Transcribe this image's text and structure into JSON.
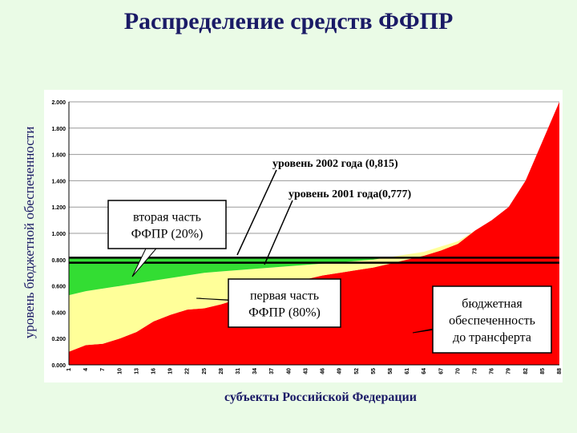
{
  "chart_data": {
    "type": "stacked_area",
    "title": "Распределение средств ФФПР",
    "y_label": "уровень бюджетной обеспеченности",
    "x_label": "субъекты Российской Федерации",
    "categories": [
      "1",
      "4",
      "7",
      "10",
      "13",
      "16",
      "19",
      "22",
      "25",
      "28",
      "31",
      "34",
      "37",
      "40",
      "43",
      "46",
      "49",
      "52",
      "55",
      "58",
      "61",
      "64",
      "67",
      "70",
      "73",
      "76",
      "79",
      "82",
      "85",
      "88"
    ],
    "series": [
      {
        "color": "#ff0000",
        "label_lines": [
          "бюджетная",
          "обеспеченность",
          "до трансферта"
        ],
        "values": [
          0.1,
          0.15,
          0.16,
          0.2,
          0.25,
          0.33,
          0.38,
          0.42,
          0.43,
          0.46,
          0.5,
          0.55,
          0.58,
          0.62,
          0.65,
          0.68,
          0.7,
          0.72,
          0.74,
          0.77,
          0.8,
          0.83,
          0.87,
          0.92,
          1.02,
          1.1,
          1.2,
          1.4,
          1.7,
          2.0
        ]
      },
      {
        "color": "#ffff99",
        "label_lines": [
          "первая часть",
          "ФФПР (80%)"
        ],
        "values": [
          0.43,
          0.41,
          0.42,
          0.4,
          0.37,
          0.31,
          0.28,
          0.26,
          0.27,
          0.25,
          0.22,
          0.18,
          0.16,
          0.13,
          0.11,
          0.09,
          0.08,
          0.07,
          0.06,
          0.05,
          0.04,
          0.03,
          0.03,
          0.02,
          0,
          0,
          0,
          0,
          0,
          0
        ]
      },
      {
        "color": "#33dd33",
        "label_lines": [
          "вторая часть",
          "ФФПР (20%)"
        ],
        "values": [
          0.285,
          0.255,
          0.235,
          0.215,
          0.195,
          0.175,
          0.155,
          0.135,
          0.115,
          0.105,
          0.095,
          0.085,
          0.075,
          0.065,
          0.055,
          0.045,
          0.035,
          0.025,
          0.015,
          0,
          0,
          0,
          0,
          0,
          0,
          0,
          0,
          0,
          0,
          0
        ]
      }
    ],
    "reference_lines": [
      {
        "value": 0.815,
        "label": "уровень 2002 года (0,815)"
      },
      {
        "value": 0.777,
        "label": "уровень 2001 года(0,777)"
      }
    ],
    "ylim": [
      0,
      2
    ],
    "yticks": [
      {
        "value": 0,
        "label": "0.000"
      },
      {
        "value": 0.2,
        "label": "0.200"
      },
      {
        "value": 0.4,
        "label": "0.400"
      },
      {
        "value": 0.6,
        "label": "0.600"
      },
      {
        "value": 0.8,
        "label": "0.800"
      },
      {
        "value": 1,
        "label": "1.000"
      },
      {
        "value": 1.2,
        "label": "1.200"
      },
      {
        "value": 1.4,
        "label": "1.400"
      },
      {
        "value": 1.6,
        "label": "1.600"
      },
      {
        "value": 1.8,
        "label": "1.800"
      },
      {
        "value": 2,
        "label": "2.000"
      }
    ],
    "grid": true
  }
}
